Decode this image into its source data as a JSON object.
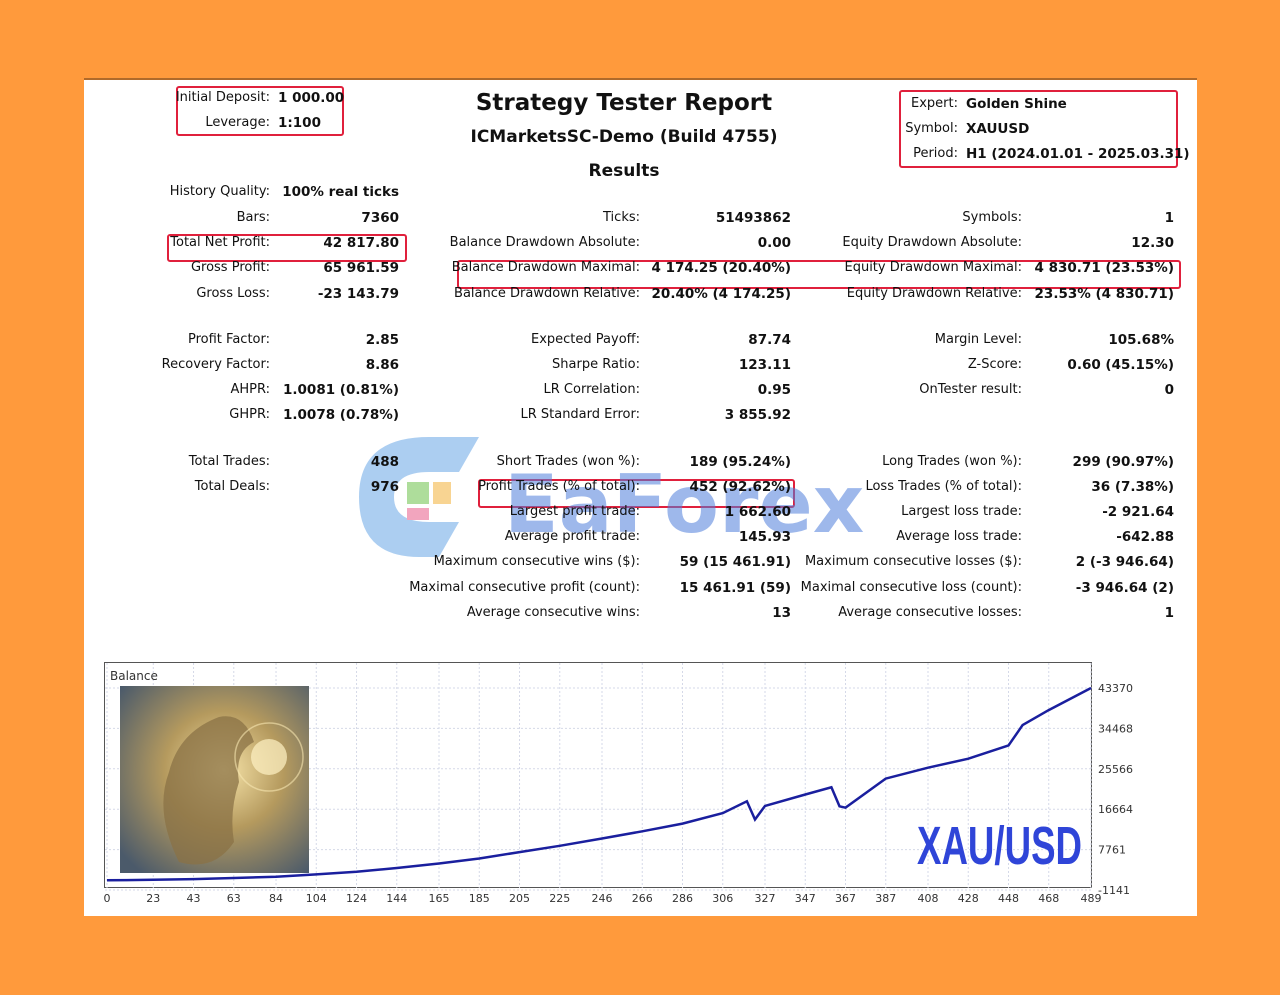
{
  "report": {
    "title": "Strategy Tester Report",
    "server": "ICMarketsSC-Demo (Build 4755)",
    "section": "Results"
  },
  "deposit": {
    "initial_label": "Initial Deposit:",
    "initial_value": "1 000.00",
    "leverage_label": "Leverage:",
    "leverage_value": "1:100"
  },
  "expert": {
    "expert_label": "Expert:",
    "expert_value": "Golden Shine",
    "symbol_label": "Symbol:",
    "symbol_value": "XAUUSD",
    "period_label": "Period:",
    "period_value": "H1 (2024.01.01 - 2025.03.31)"
  },
  "col1": [
    {
      "label": "History Quality:",
      "value": "100% real ticks"
    },
    {
      "label": "Bars:",
      "value": "7360"
    },
    {
      "label": "Total Net Profit:",
      "value": "42 817.80"
    },
    {
      "label": "Gross Profit:",
      "value": "65 961.59"
    },
    {
      "label": "Gross Loss:",
      "value": "-23 143.79"
    },
    {
      "label": "Profit Factor:",
      "value": "2.85"
    },
    {
      "label": "Recovery Factor:",
      "value": "8.86"
    },
    {
      "label": "AHPR:",
      "value": "1.0081 (0.81%)"
    },
    {
      "label": "GHPR:",
      "value": "1.0078 (0.78%)"
    },
    {
      "label": "Total Trades:",
      "value": "488"
    },
    {
      "label": "Total Deals:",
      "value": "976"
    }
  ],
  "col2": [
    {
      "label": "Ticks:",
      "value": "51493862"
    },
    {
      "label": "Balance Drawdown Absolute:",
      "value": "0.00"
    },
    {
      "label": "Balance Drawdown Maximal:",
      "value": "4 174.25 (20.40%)"
    },
    {
      "label": "Balance Drawdown Relative:",
      "value": "20.40% (4 174.25)"
    },
    {
      "label": "Expected Payoff:",
      "value": "87.74"
    },
    {
      "label": "Sharpe Ratio:",
      "value": "123.11"
    },
    {
      "label": "LR Correlation:",
      "value": "0.95"
    },
    {
      "label": "LR Standard Error:",
      "value": "3 855.92"
    },
    {
      "label": "Short Trades (won %):",
      "value": "189 (95.24%)"
    },
    {
      "label": "Profit Trades (% of total):",
      "value": "452 (92.62%)"
    },
    {
      "label": "Largest profit trade:",
      "value": "1 662.60"
    },
    {
      "label": "Average profit trade:",
      "value": "145.93"
    },
    {
      "label": "Maximum consecutive wins ($):",
      "value": "59 (15 461.91)"
    },
    {
      "label": "Maximal consecutive profit (count):",
      "value": "15 461.91 (59)"
    },
    {
      "label": "Average consecutive wins:",
      "value": "13"
    }
  ],
  "col3": [
    {
      "label": "Symbols:",
      "value": "1"
    },
    {
      "label": "Equity Drawdown Absolute:",
      "value": "12.30"
    },
    {
      "label": "Equity Drawdown Maximal:",
      "value": "4 830.71 (23.53%)"
    },
    {
      "label": "Equity Drawdown Relative:",
      "value": "23.53% (4 830.71)"
    },
    {
      "label": "Margin Level:",
      "value": "105.68%"
    },
    {
      "label": "Z-Score:",
      "value": "0.60 (45.15%)"
    },
    {
      "label": "OnTester result:",
      "value": "0"
    },
    {
      "label": "Long Trades (won %):",
      "value": "299 (90.97%)"
    },
    {
      "label": "Loss Trades (% of total):",
      "value": "36 (7.38%)"
    },
    {
      "label": "Largest loss trade:",
      "value": "-2 921.64"
    },
    {
      "label": "Average loss trade:",
      "value": "-642.88"
    },
    {
      "label": "Maximum consecutive losses ($):",
      "value": "2 (-3 946.64)"
    },
    {
      "label": "Maximal consecutive loss (count):",
      "value": "-3 946.64 (2)"
    },
    {
      "label": "Average consecutive losses:",
      "value": "1"
    }
  ],
  "watermark": {
    "text": "EaForex"
  },
  "colors": {
    "highlight": "#e0203c",
    "balance_line": "#1a1f9e",
    "overlay_text": "#2f45d8",
    "background": "#FF9A3C"
  },
  "chart_data": {
    "type": "line",
    "title": "Balance",
    "overlay_label": "XAU/USD",
    "x_ticks": [
      0,
      23,
      43,
      63,
      84,
      104,
      124,
      144,
      165,
      185,
      205,
      225,
      246,
      266,
      286,
      306,
      327,
      347,
      367,
      387,
      408,
      428,
      448,
      468,
      489
    ],
    "y_ticks": [
      -1141,
      7761,
      16664,
      25566,
      34468,
      43370
    ],
    "ylim": [
      -1141,
      43370
    ],
    "xlim": [
      0,
      489
    ],
    "grid": true,
    "series": [
      {
        "x": [
          0,
          23,
          43,
          63,
          84,
          104,
          124,
          144,
          165,
          185,
          205,
          225,
          246,
          266,
          286,
          306,
          318,
          322,
          327,
          347,
          360,
          364,
          367,
          387,
          408,
          428,
          448,
          455,
          468,
          489
        ],
        "values": [
          1000,
          1100,
          1250,
          1500,
          1800,
          2300,
          2900,
          3700,
          4700,
          5800,
          7200,
          8600,
          10200,
          11800,
          13500,
          15800,
          18400,
          14400,
          17400,
          19900,
          21500,
          17300,
          17000,
          23400,
          25800,
          27800,
          30700,
          35200,
          38500,
          43370
        ]
      }
    ]
  }
}
